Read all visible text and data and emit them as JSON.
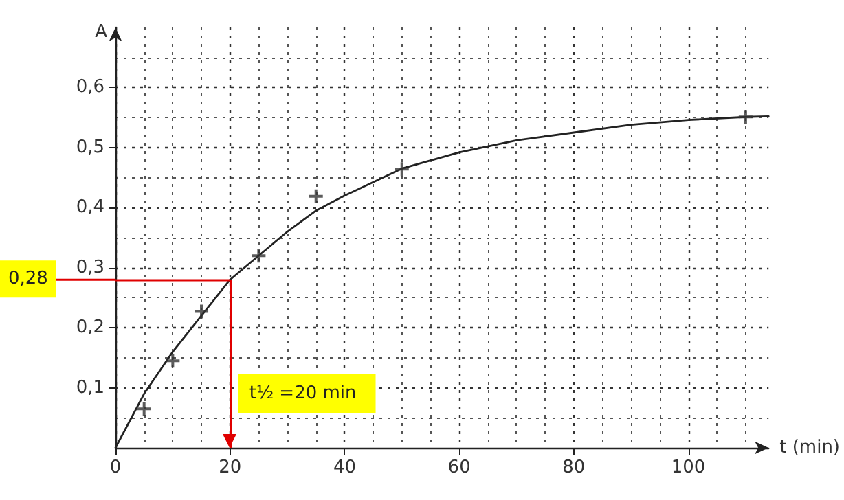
{
  "chart_data": {
    "type": "line",
    "xlabel": "t (min)",
    "ylabel": "A",
    "xlim": [
      0,
      114
    ],
    "ylim": [
      0,
      0.7
    ],
    "xticks": [
      0,
      20,
      40,
      60,
      80,
      100
    ],
    "yticks": [
      {
        "value": 0.1,
        "label": "0,1"
      },
      {
        "value": 0.2,
        "label": "0,2"
      },
      {
        "value": 0.3,
        "label": "0,3"
      },
      {
        "value": 0.4,
        "label": "0,4"
      },
      {
        "value": 0.5,
        "label": "0,5"
      },
      {
        "value": 0.6,
        "label": "0,6"
      }
    ],
    "grid": true,
    "series": [
      {
        "color": "#222222",
        "marker": "none",
        "x": [
          0,
          5,
          10,
          15,
          20,
          25,
          30,
          35,
          40,
          50,
          60,
          70,
          80,
          90,
          100,
          110,
          114
        ],
        "values": [
          0,
          0.09,
          0.16,
          0.22,
          0.28,
          0.32,
          0.36,
          0.395,
          0.42,
          0.465,
          0.492,
          0.512,
          0.525,
          0.538,
          0.546,
          0.551,
          0.552
        ]
      },
      {
        "type": "scatter",
        "color": "#333333",
        "marker": "cross",
        "x": [
          5,
          10,
          15,
          25,
          35,
          50,
          110
        ],
        "values": [
          0.065,
          0.145,
          0.227,
          0.32,
          0.419,
          0.464,
          0.551
        ]
      }
    ],
    "ref_lines": [
      {
        "axis": "y",
        "value": 0.28,
        "label": "0,28",
        "color": "#e00000"
      },
      {
        "axis": "x",
        "value": 20,
        "label": "t½ =20 min",
        "color": "#e00000"
      }
    ]
  }
}
